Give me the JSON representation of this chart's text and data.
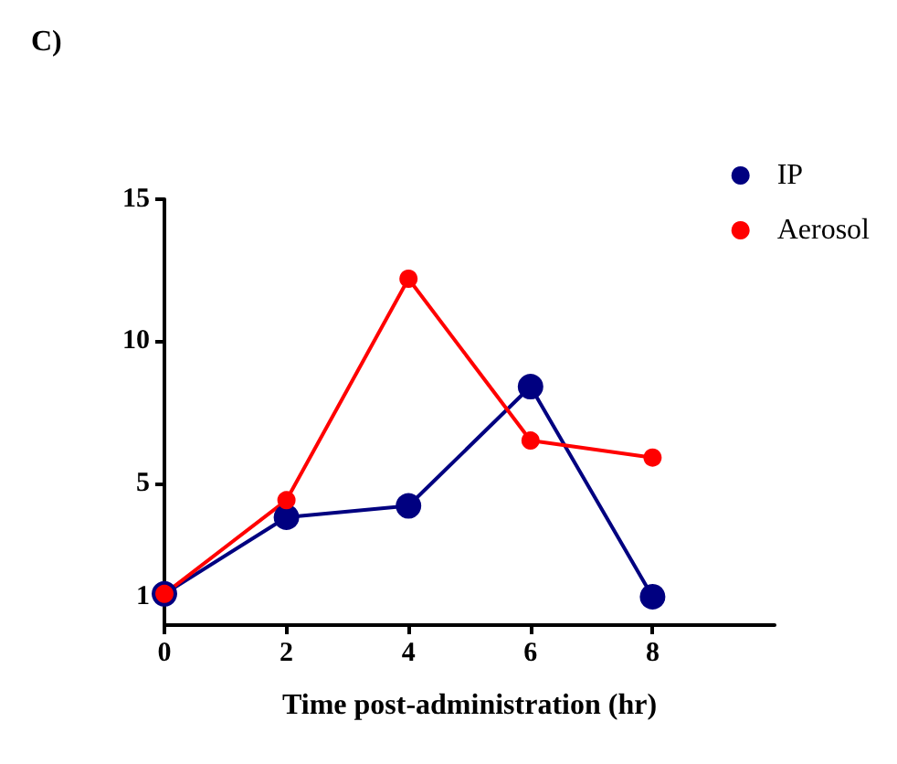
{
  "chart_data": {
    "type": "line",
    "title": "C)",
    "xlabel": "Time post-administration (hr)",
    "x": [
      0,
      2,
      4,
      6,
      8
    ],
    "series": [
      {
        "name": "IP",
        "color": "#000080",
        "values": [
          1.1,
          3.8,
          4.2,
          8.4,
          1.0
        ]
      },
      {
        "name": "Aerosol",
        "color": "#ff0000",
        "values": [
          1.1,
          4.4,
          12.2,
          6.5,
          5.9
        ]
      }
    ],
    "xlim": [
      0,
      10
    ],
    "xticks": [
      0,
      2,
      4,
      6,
      8
    ],
    "ylim": [
      0,
      15
    ],
    "yticks": [
      1,
      5,
      10,
      15
    ],
    "grid": false,
    "legend": "top right",
    "marker": "circle",
    "line_style": "solid"
  }
}
